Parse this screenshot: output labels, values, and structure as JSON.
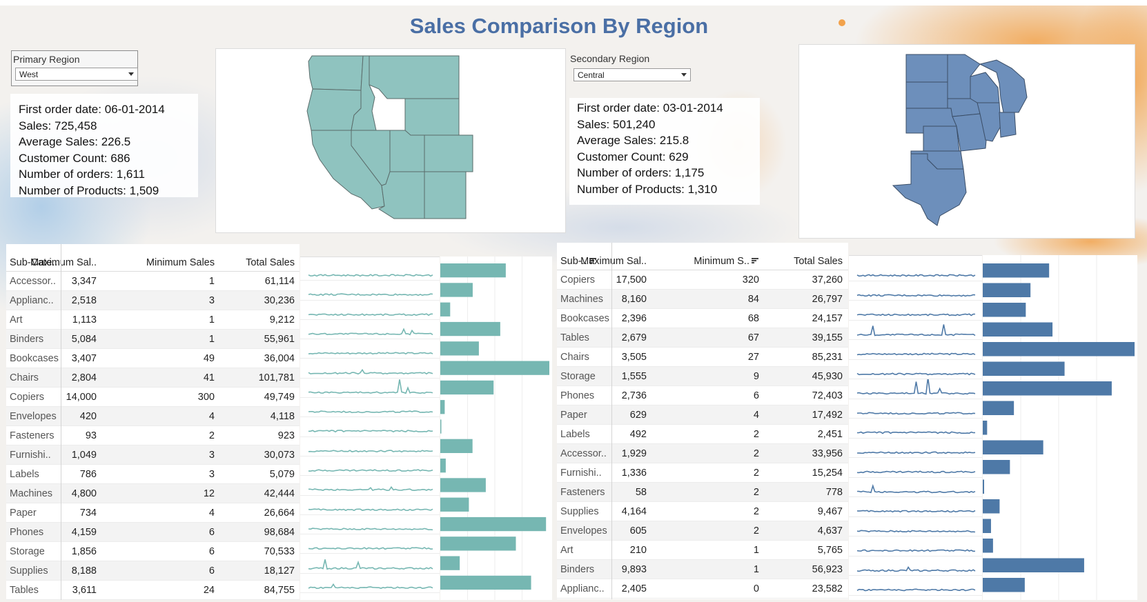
{
  "title": "Sales Comparison By Region",
  "colors": {
    "primary": "#76b7b2",
    "secondary": "#4e79a7",
    "title": "#4a6fa5"
  },
  "primary": {
    "filter_label": "Primary Region",
    "selected": "West",
    "stats": [
      {
        "label": "First order date:",
        "value": "06-01-2014"
      },
      {
        "label": "Sales:",
        "value": "725,458"
      },
      {
        "label": "Average Sales:",
        "value": "226.5"
      },
      {
        "label": "Customer Count:",
        "value": "686"
      },
      {
        "label": "Number of orders:",
        "value": "1,611"
      },
      {
        "label": "Number of Products:",
        "value": "1,509"
      }
    ],
    "table": {
      "headers": [
        "Sub-Cate..",
        "Maximum Sal..",
        "Minimum Sales",
        "Total Sales"
      ],
      "rows": [
        [
          "Accessor..",
          "3,347",
          "1",
          "61,114"
        ],
        [
          "Applianc..",
          "2,518",
          "3",
          "30,236"
        ],
        [
          "Art",
          "1,113",
          "1",
          "9,212"
        ],
        [
          "Binders",
          "5,084",
          "1",
          "55,961"
        ],
        [
          "Bookcases",
          "3,407",
          "49",
          "36,004"
        ],
        [
          "Chairs",
          "2,804",
          "41",
          "101,781"
        ],
        [
          "Copiers",
          "14,000",
          "300",
          "49,749"
        ],
        [
          "Envelopes",
          "420",
          "4",
          "4,118"
        ],
        [
          "Fasteners",
          "93",
          "2",
          "923"
        ],
        [
          "Furnishi..",
          "1,049",
          "3",
          "30,073"
        ],
        [
          "Labels",
          "786",
          "3",
          "5,079"
        ],
        [
          "Machines",
          "4,800",
          "12",
          "42,444"
        ],
        [
          "Paper",
          "734",
          "4",
          "26,664"
        ],
        [
          "Phones",
          "4,159",
          "6",
          "98,684"
        ],
        [
          "Storage",
          "1,856",
          "6",
          "70,533"
        ],
        [
          "Supplies",
          "8,188",
          "6",
          "18,127"
        ],
        [
          "Tables",
          "3,611",
          "24",
          "84,755"
        ]
      ]
    }
  },
  "secondary": {
    "filter_label": "Secondary Region",
    "selected": "Central",
    "stats": [
      {
        "label": "First order date:",
        "value": "03-01-2014"
      },
      {
        "label": "Sales:",
        "value": "501,240"
      },
      {
        "label": "Average Sales:",
        "value": "215.8"
      },
      {
        "label": "Customer Count:",
        "value": "629"
      },
      {
        "label": "Number of orders:",
        "value": "1,175"
      },
      {
        "label": "Number of Products:",
        "value": "1,310"
      }
    ],
    "table": {
      "headers": [
        "Sub-..",
        "Maximum Sal..",
        "Minimum S..",
        "Total Sales"
      ],
      "rows": [
        [
          "Copiers",
          "17,500",
          "320",
          "37,260"
        ],
        [
          "Machines",
          "8,160",
          "84",
          "26,797"
        ],
        [
          "Bookcases",
          "2,396",
          "68",
          "24,157"
        ],
        [
          "Tables",
          "2,679",
          "67",
          "39,155"
        ],
        [
          "Chairs",
          "3,505",
          "27",
          "85,231"
        ],
        [
          "Storage",
          "1,555",
          "9",
          "45,930"
        ],
        [
          "Phones",
          "2,736",
          "6",
          "72,403"
        ],
        [
          "Paper",
          "629",
          "4",
          "17,492"
        ],
        [
          "Labels",
          "492",
          "2",
          "2,451"
        ],
        [
          "Accessor..",
          "1,929",
          "2",
          "33,956"
        ],
        [
          "Furnishi..",
          "1,336",
          "2",
          "15,254"
        ],
        [
          "Fasteners",
          "58",
          "2",
          "778"
        ],
        [
          "Supplies",
          "4,164",
          "2",
          "9,467"
        ],
        [
          "Envelopes",
          "605",
          "2",
          "4,637"
        ],
        [
          "Art",
          "210",
          "1",
          "5,765"
        ],
        [
          "Binders",
          "9,893",
          "1",
          "56,923"
        ],
        [
          "Applianc..",
          "2,405",
          "0",
          "23,582"
        ]
      ]
    }
  },
  "chart_data": [
    {
      "type": "bar",
      "categories": [
        "Accessor..",
        "Applianc..",
        "Art",
        "Binders",
        "Bookcases",
        "Chairs",
        "Copiers",
        "Envelopes",
        "Fasteners",
        "Furnishi..",
        "Labels",
        "Machines",
        "Paper",
        "Phones",
        "Storage",
        "Supplies",
        "Tables"
      ],
      "values": [
        61114,
        30236,
        9212,
        55961,
        36004,
        101781,
        49749,
        4118,
        923,
        30073,
        5079,
        42444,
        26664,
        98684,
        70533,
        18127,
        84755
      ],
      "orientation": "horizontal",
      "color": "#76b7b2"
    },
    {
      "type": "bar",
      "categories": [
        "Copiers",
        "Machines",
        "Bookcases",
        "Tables",
        "Chairs",
        "Storage",
        "Phones",
        "Paper",
        "Labels",
        "Accessor..",
        "Furnishi..",
        "Fasteners",
        "Supplies",
        "Envelopes",
        "Art",
        "Binders",
        "Applianc.."
      ],
      "values": [
        37260,
        26797,
        24157,
        39155,
        85231,
        45930,
        72403,
        17492,
        2451,
        33956,
        15254,
        778,
        9467,
        4637,
        5765,
        56923,
        23582
      ],
      "orientation": "horizontal",
      "color": "#4e79a7"
    }
  ]
}
